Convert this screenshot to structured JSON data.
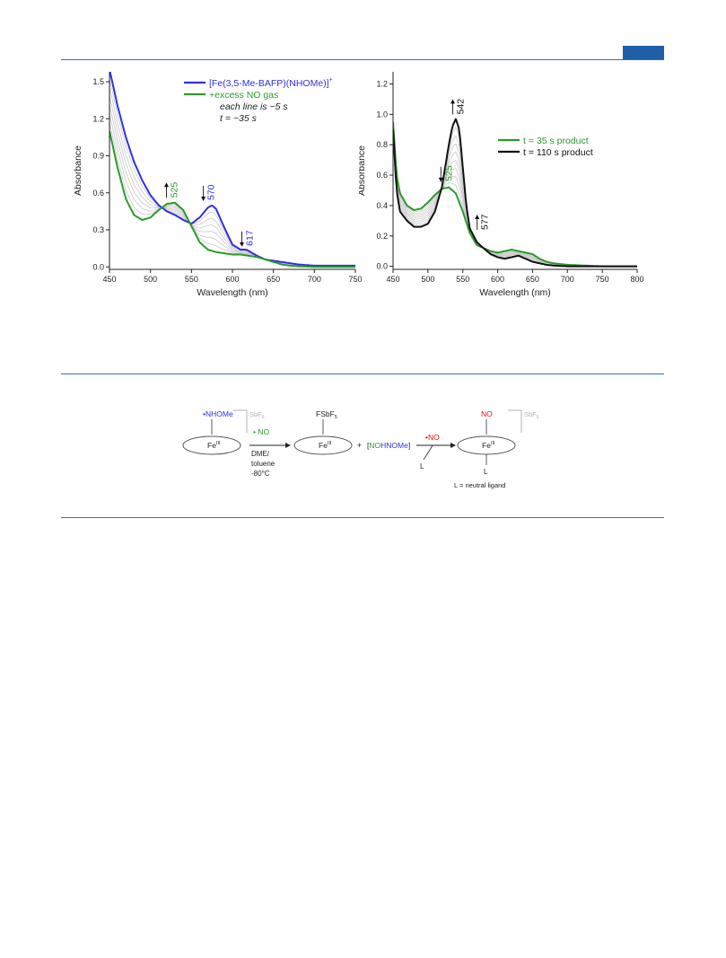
{
  "colors": {
    "rule": "#3a6ea5",
    "tab": "#1f5fa8",
    "blue": "#2f2fe6",
    "green": "#2c9a2c",
    "black": "#111111",
    "gray": "#c8c8c8",
    "red": "#e01010",
    "light_gray_text": "#b0b0b0"
  },
  "chart_data": [
    {
      "type": "line",
      "title": "",
      "xlabel": "Wavelength (nm)",
      "ylabel": "Absorbance",
      "xlim": [
        450,
        750
      ],
      "ylim": [
        -0.02,
        1.58
      ],
      "xticks": [
        450,
        500,
        550,
        600,
        650,
        700,
        750
      ],
      "yticks": [
        0.0,
        0.3,
        0.6,
        0.9,
        1.2,
        1.5
      ],
      "ytick_labels": [
        "0.0",
        "0.3",
        "0.6",
        "0.9",
        "1.2",
        "1.5"
      ],
      "legend_position": "top-right",
      "series": [
        {
          "name": "[Fe(3,5-Me-BAFP)(NHOMe)]",
          "superscript": "+",
          "color": "#2f2fe6",
          "x": [
            450,
            460,
            470,
            480,
            490,
            500,
            510,
            520,
            530,
            540,
            550,
            560,
            570,
            575,
            580,
            590,
            600,
            610,
            617,
            630,
            640,
            650,
            660,
            670,
            680,
            700,
            720,
            750
          ],
          "y": [
            1.6,
            1.3,
            1.05,
            0.85,
            0.7,
            0.58,
            0.5,
            0.45,
            0.42,
            0.38,
            0.35,
            0.4,
            0.48,
            0.5,
            0.47,
            0.32,
            0.18,
            0.14,
            0.14,
            0.09,
            0.06,
            0.05,
            0.04,
            0.03,
            0.02,
            0.01,
            0.01,
            0.01
          ]
        },
        {
          "name": "+excess NO gas",
          "color": "#2c9a2c",
          "x": [
            450,
            460,
            470,
            480,
            490,
            500,
            510,
            520,
            530,
            540,
            550,
            560,
            570,
            580,
            590,
            600,
            610,
            620,
            630,
            640,
            650,
            660,
            670,
            680,
            700,
            720,
            750
          ],
          "y": [
            1.1,
            0.8,
            0.55,
            0.42,
            0.38,
            0.4,
            0.46,
            0.51,
            0.52,
            0.46,
            0.33,
            0.2,
            0.14,
            0.12,
            0.11,
            0.1,
            0.1,
            0.09,
            0.08,
            0.06,
            0.04,
            0.02,
            0.01,
            0.005,
            0.0,
            0.0,
            0.0
          ]
        }
      ],
      "intermediate_lines": 6,
      "annotations": [
        {
          "text": "each line is ~5 s",
          "italic": true
        },
        {
          "text": "t = ~35 s",
          "italic": true
        },
        {
          "text": "525",
          "x": 525,
          "y": 0.56,
          "color": "#2c9a2c",
          "arrow": "up"
        },
        {
          "text": "570",
          "x": 570,
          "y": 0.54,
          "color": "#2f2fe6",
          "arrow": "down"
        },
        {
          "text": "617",
          "x": 617,
          "y": 0.17,
          "color": "#2f2fe6",
          "arrow": "down"
        }
      ]
    },
    {
      "type": "line",
      "title": "",
      "xlabel": "Wavelength (nm)",
      "ylabel": "Absorbance",
      "xlim": [
        450,
        800
      ],
      "ylim": [
        -0.02,
        1.28
      ],
      "xticks": [
        450,
        500,
        550,
        600,
        650,
        700,
        750,
        800
      ],
      "yticks": [
        0.0,
        0.2,
        0.4,
        0.6,
        0.8,
        1.0,
        1.2
      ],
      "ytick_labels": [
        "0.0",
        "0.2",
        "0.4",
        "0.6",
        "0.8",
        "1.0",
        "1.2"
      ],
      "legend_position": "center-right",
      "series": [
        {
          "name": "t = 35 s product",
          "color": "#2c9a2c",
          "x": [
            450,
            455,
            460,
            470,
            480,
            490,
            500,
            510,
            520,
            530,
            540,
            550,
            560,
            570,
            580,
            590,
            600,
            610,
            620,
            630,
            640,
            650,
            660,
            670,
            680,
            700,
            750,
            800
          ],
          "y": [
            0.95,
            0.6,
            0.48,
            0.4,
            0.37,
            0.38,
            0.42,
            0.47,
            0.51,
            0.52,
            0.48,
            0.36,
            0.22,
            0.14,
            0.12,
            0.1,
            0.09,
            0.1,
            0.11,
            0.1,
            0.09,
            0.08,
            0.05,
            0.03,
            0.02,
            0.01,
            0.0,
            0.0
          ]
        },
        {
          "name": "t =  110 s product",
          "color": "#111111",
          "x": [
            450,
            455,
            460,
            470,
            480,
            490,
            500,
            510,
            520,
            530,
            535,
            540,
            545,
            550,
            555,
            560,
            570,
            577,
            590,
            600,
            610,
            620,
            630,
            640,
            650,
            660,
            670,
            680,
            700,
            750,
            800
          ],
          "y": [
            0.9,
            0.5,
            0.36,
            0.3,
            0.26,
            0.26,
            0.28,
            0.36,
            0.52,
            0.8,
            0.92,
            0.97,
            0.9,
            0.65,
            0.4,
            0.25,
            0.16,
            0.13,
            0.08,
            0.06,
            0.05,
            0.06,
            0.07,
            0.05,
            0.03,
            0.02,
            0.01,
            0.005,
            0.0,
            0.0,
            0.0
          ]
        }
      ],
      "intermediate_lines": 8,
      "annotations": [
        {
          "text": "542",
          "x": 542,
          "y": 1.0,
          "color": "#111111",
          "arrow": "up"
        },
        {
          "text": "525",
          "x": 525,
          "y": 0.56,
          "color": "#2c9a2c",
          "arrow": "down"
        },
        {
          "text": "577",
          "x": 577,
          "y": 0.24,
          "color": "#111111",
          "arrow": "up"
        }
      ]
    }
  ],
  "scheme": {
    "sm_ligand": "•NHOMe",
    "sm_metal": "Fe",
    "sm_ox": "III",
    "counterion": "SbF",
    "counterion_sub": "6",
    "reagent": "• NO",
    "conditions": [
      "DME/",
      "toluene",
      "-80°C"
    ],
    "int_ligand": "FSbF",
    "int_ligand_sub": "5",
    "int_metal": "Fe",
    "int_ox": "III",
    "plus": "+",
    "byproduct_no": "NO",
    "byproduct_rest": "HNOMe",
    "bracket_open": "[",
    "bracket_close": "]",
    "reagent2": "•NO",
    "ligand_in": "L",
    "prod_ligand_top": "NO",
    "prod_metal": "Fe",
    "prod_ox": "III",
    "prod_ligand_bottom": "L",
    "prod_counterion": "SbF",
    "prod_counterion_sub": "6",
    "footnote": "L = neutral ligand"
  }
}
